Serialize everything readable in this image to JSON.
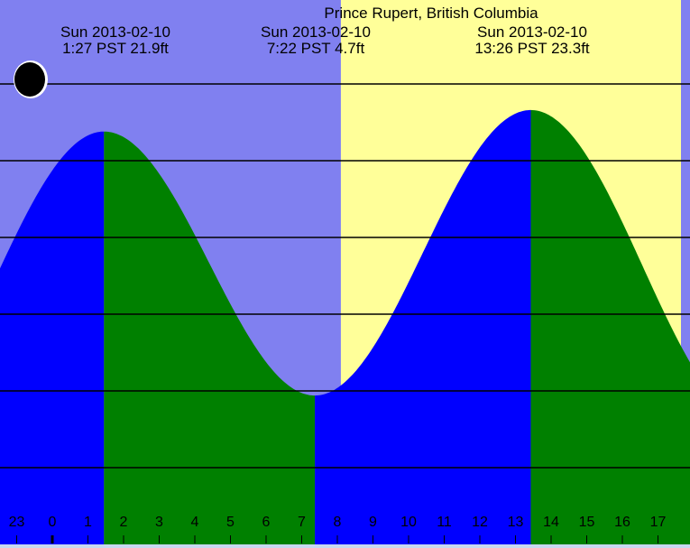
{
  "chart_data": {
    "type": "area",
    "title": "Prince Rupert, British Columbia",
    "annotations": [
      {
        "date": "Sun 2013-02-10",
        "time": "1:27 PST",
        "height": "21.9ft"
      },
      {
        "date": "Sun 2013-02-10",
        "time": "7:22 PST",
        "height": "4.7ft"
      },
      {
        "date": "Sun 2013-02-10",
        "time": "13:26 PST",
        "height": "23.3ft"
      }
    ],
    "extremes": [
      {
        "hour": 1.45,
        "ft": 21.9,
        "kind": "high"
      },
      {
        "hour": 7.37,
        "ft": 4.7,
        "kind": "low"
      },
      {
        "hour": 13.43,
        "ft": 23.3,
        "kind": "high"
      }
    ],
    "x_tick_labels": [
      "23",
      "0",
      "1",
      "2",
      "3",
      "4",
      "5",
      "6",
      "7",
      "8",
      "9",
      "10",
      "11",
      "12",
      "13",
      "14",
      "15",
      "16",
      "17",
      "1"
    ],
    "gridlines_ft": [
      0,
      5,
      10,
      15,
      20,
      25
    ],
    "moon_phase": "new-moon",
    "daylight_start_hour": 8.1,
    "colors": {
      "night": "#8080f0",
      "day": "#ffff99",
      "rising": "#0000ff",
      "falling": "#008000",
      "grid": "#000000"
    }
  }
}
